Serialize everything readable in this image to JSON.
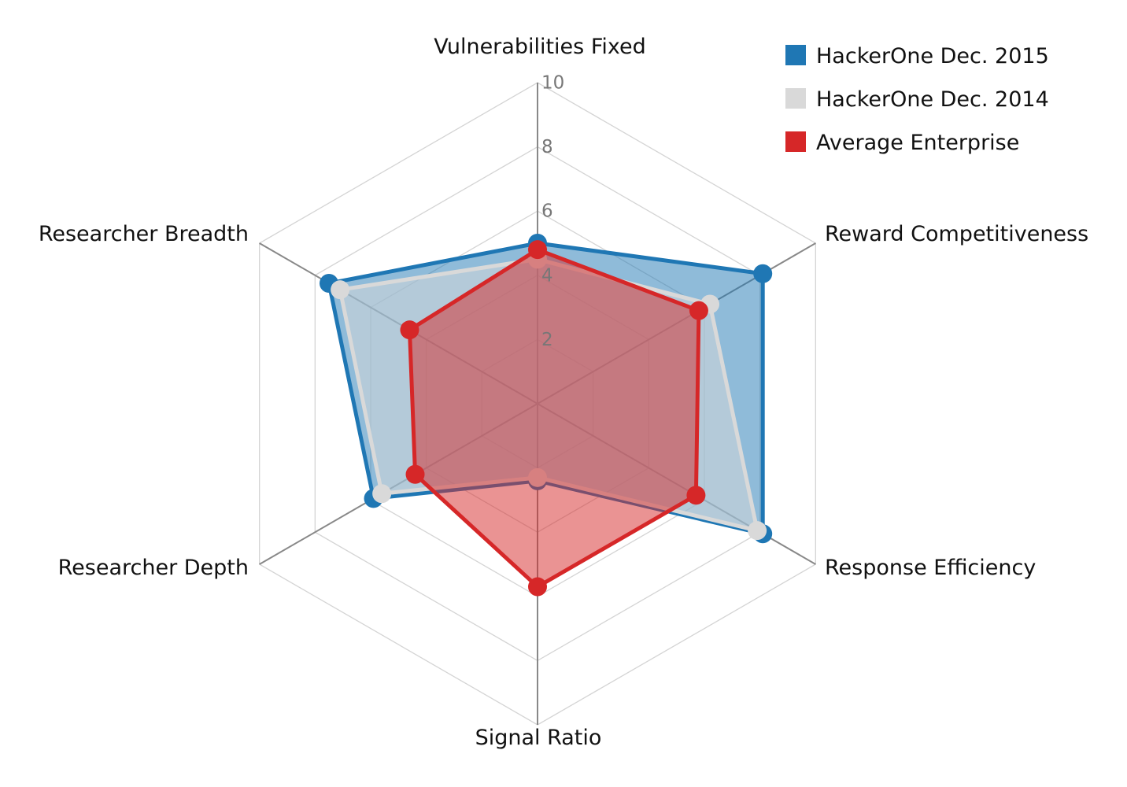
{
  "chart_data": {
    "type": "radar",
    "axes": [
      "Vulnerabilities Fixed",
      "Reward Competitiveness",
      "Response Efficiency",
      "Signal Ratio",
      "Researcher Depth",
      "Researcher Breadth"
    ],
    "rlim": [
      0,
      10
    ],
    "ticks": [
      2,
      4,
      6,
      8,
      10
    ],
    "grid": true,
    "legend_position": "top-right",
    "series": [
      {
        "name": "HackerOne Dec. 2015",
        "color": "#1f77b4",
        "fill_opacity": 0.5,
        "values": [
          5.0,
          8.1,
          8.1,
          2.4,
          5.9,
          7.5
        ]
      },
      {
        "name": "HackerOne Dec. 2014",
        "color": "#d9d9d9",
        "fill_opacity": 0.5,
        "values": [
          4.5,
          6.2,
          7.9,
          2.3,
          5.6,
          7.1
        ]
      },
      {
        "name": "Average Enterprise",
        "color": "#d62728",
        "fill_opacity": 0.5,
        "values": [
          4.8,
          5.8,
          5.7,
          5.7,
          4.4,
          4.6
        ]
      }
    ]
  }
}
